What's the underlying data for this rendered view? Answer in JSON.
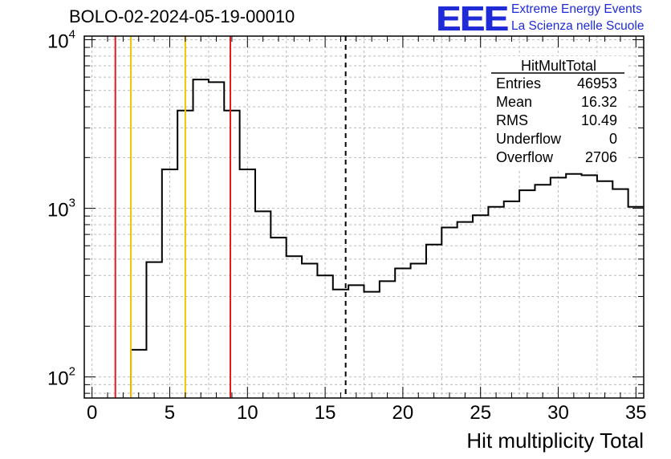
{
  "header": {
    "run_title": "BOLO-02-2024-05-19-00010",
    "logo": "EEE",
    "logo_line1": "Extreme Energy Events",
    "logo_line2": "La Scienza nelle Scuole"
  },
  "colors": {
    "histogram": "#000000",
    "red_lines": "#e8191b",
    "yellow_lines": "#f2c200",
    "logo": "#1f2bd6",
    "grid": "#bbbbbb"
  },
  "stats_box": {
    "title": "HitMultTotal",
    "rows": [
      {
        "label": "Entries",
        "value": "46953"
      },
      {
        "label": "Mean",
        "value": "16.32"
      },
      {
        "label": "RMS",
        "value": "10.49"
      },
      {
        "label": "Underflow",
        "value": "0"
      },
      {
        "label": "Overflow",
        "value": "2706"
      }
    ]
  },
  "chart_data": {
    "type": "histogram",
    "title": "",
    "xlabel": "Hit multiplicity Total",
    "ylabel": "",
    "xlim": [
      -0.5,
      35.5
    ],
    "ylim": [
      75,
      10500
    ],
    "log_y": true,
    "grid": true,
    "x_ticks": [
      0,
      5,
      10,
      15,
      20,
      25,
      30,
      35
    ],
    "y_ticks": [
      {
        "value": 100,
        "base": "10",
        "exp": "2"
      },
      {
        "value": 1000,
        "base": "10",
        "exp": "3"
      },
      {
        "value": 10000,
        "base": "10",
        "exp": "4"
      }
    ],
    "bin_width": 1,
    "bin_centers": [
      0,
      1,
      2,
      3,
      4,
      5,
      6,
      7,
      8,
      9,
      10,
      11,
      12,
      13,
      14,
      15,
      16,
      17,
      18,
      19,
      20,
      21,
      22,
      23,
      24,
      25,
      26,
      27,
      28,
      29,
      30,
      31,
      32,
      33,
      34,
      35
    ],
    "counts": [
      0,
      0,
      0,
      145,
      480,
      1700,
      3800,
      5800,
      5600,
      3800,
      1700,
      960,
      670,
      520,
      470,
      400,
      330,
      350,
      320,
      370,
      440,
      470,
      610,
      770,
      830,
      910,
      1020,
      1100,
      1280,
      1380,
      1520,
      1600,
      1570,
      1450,
      1300,
      1020
    ],
    "vertical_lines": [
      {
        "x": 1.5,
        "color": "red"
      },
      {
        "x": 2.5,
        "color": "yellow"
      },
      {
        "x": 6.0,
        "color": "yellow"
      },
      {
        "x": 8.9,
        "color": "red"
      },
      {
        "x": 16.32,
        "color": "black",
        "style": "dashed"
      }
    ]
  }
}
